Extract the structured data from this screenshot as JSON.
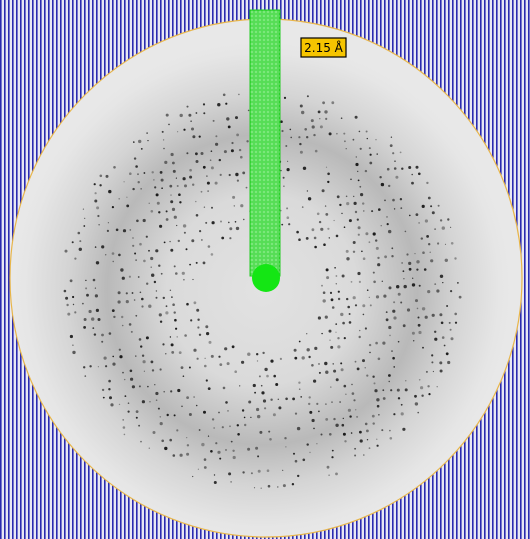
{
  "resolution_label": "2.15 Å"
}
